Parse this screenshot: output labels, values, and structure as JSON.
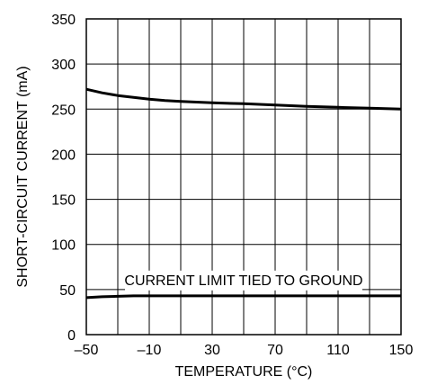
{
  "chart_data": {
    "type": "line",
    "title": "",
    "xlabel": "TEMPERATURE (°C)",
    "ylabel": "SHORT-CIRCUIT CURRENT (mA)",
    "xlim": [
      -50,
      150
    ],
    "ylim": [
      0,
      350
    ],
    "x_ticks": [
      -50,
      -10,
      30,
      70,
      110,
      150
    ],
    "x_tick_labels": [
      "–50",
      "–10",
      "30",
      "70",
      "110",
      "150"
    ],
    "x_grid_step": 20,
    "y_ticks": [
      0,
      50,
      100,
      150,
      200,
      250,
      300,
      350
    ],
    "y_tick_labels": [
      "0",
      "50",
      "100",
      "150",
      "200",
      "250",
      "300",
      "350"
    ],
    "grid": true,
    "series": [
      {
        "x": [
          -50,
          -40,
          -30,
          -20,
          -10,
          0,
          10,
          30,
          50,
          70,
          90,
          110,
          130,
          150
        ],
        "y": [
          272,
          268,
          265,
          263,
          261,
          259.5,
          258.5,
          257,
          256,
          254.5,
          253,
          252,
          251,
          250
        ]
      },
      {
        "x": [
          -50,
          -40,
          -30,
          -20,
          -10,
          30,
          70,
          110,
          150
        ],
        "y": [
          41,
          42,
          42.5,
          43,
          43,
          43,
          43,
          43,
          43
        ]
      }
    ],
    "annotations": [
      {
        "text": "CURRENT LIMIT TIED TO GROUND",
        "x": 50,
        "y": 61
      }
    ]
  }
}
